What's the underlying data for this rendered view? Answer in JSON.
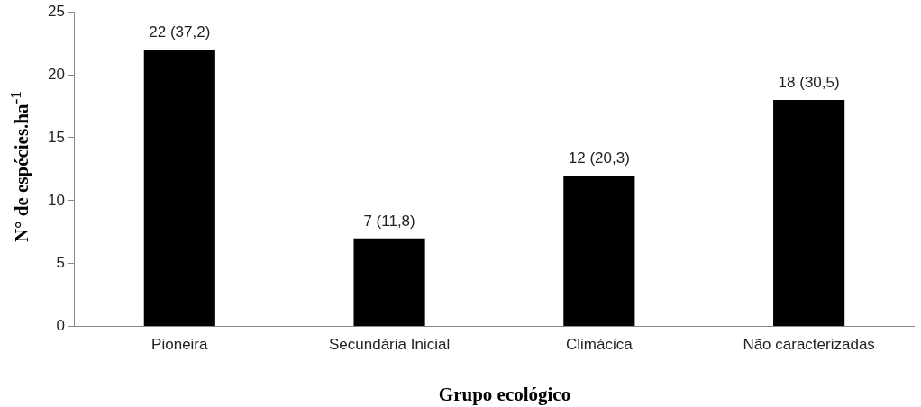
{
  "chart_data": {
    "type": "bar",
    "xlabel": "Grupo ecológico",
    "ylabel": "N° de espécies.ha$^{-1}$",
    "categories": [
      "Pioneira",
      "Secundária Inicial",
      "Climácica",
      "Não caracterizadas"
    ],
    "values": [
      22,
      7,
      12,
      18
    ],
    "color": "#000000",
    "value_labels": [
      "22 (37,2)",
      "7 (11,8)",
      "12 (20,3)",
      "18 (30,5)"
    ],
    "ylim": [
      0,
      25
    ],
    "yticks": [
      0,
      5,
      10,
      15,
      20,
      25
    ],
    "grid": false,
    "legend": false
  }
}
